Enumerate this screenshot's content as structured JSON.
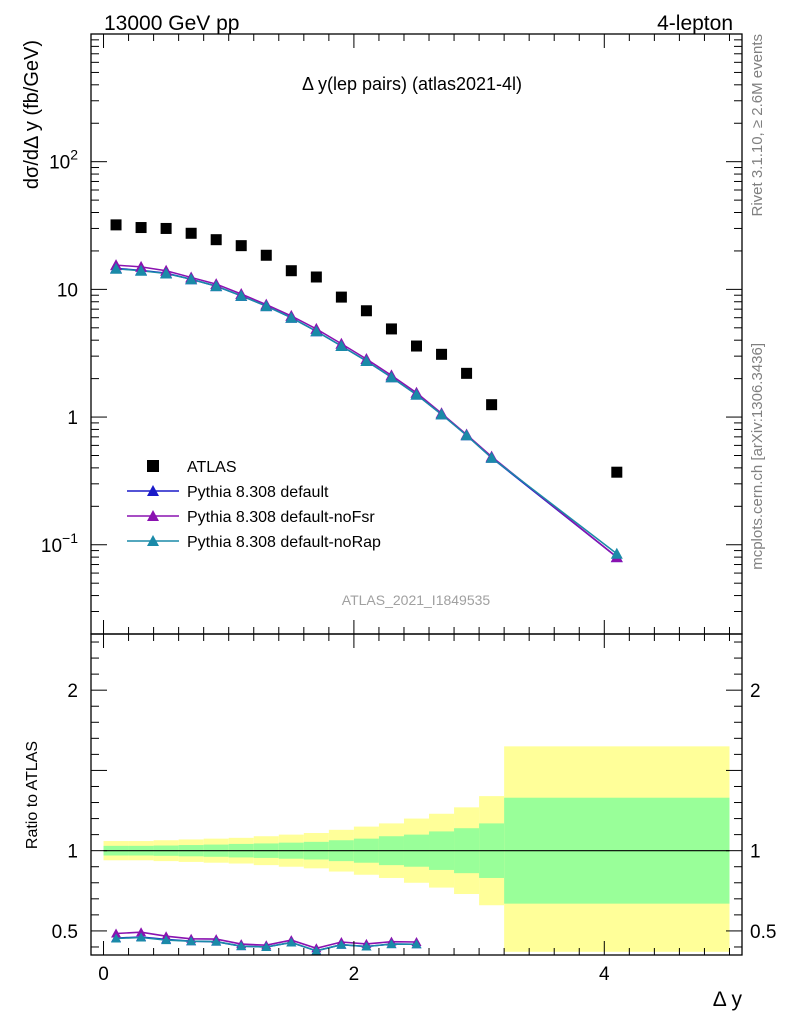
{
  "header": {
    "left": "13000 GeV pp",
    "right": "4-lepton"
  },
  "side_labels": {
    "rivet": "Rivet 3.1.10, ≥ 2.6M events",
    "mcplots": "mcplots.cern.ch [arXiv:1306.3436]"
  },
  "watermark": "ATLAS_2021_I1849535",
  "chart_data": [
    {
      "panel": "main",
      "type": "scatter",
      "title": "Δ y(lep pairs) (atlas2021-4l)",
      "ylabel": "dσ/dΔ y (fb/GeV)",
      "xlabel": "",
      "yscale": "log",
      "xlim": [
        -0.1,
        5.1
      ],
      "ylim": [
        0.02,
        1000
      ],
      "y_ticks": [
        {
          "value": 0.1,
          "base": "10",
          "exp": "−1"
        },
        {
          "value": 1,
          "base": "1",
          "exp": ""
        },
        {
          "value": 10,
          "base": "10",
          "exp": ""
        },
        {
          "value": 100,
          "base": "10",
          "exp": "2"
        }
      ],
      "legend_position": "bottom-left",
      "x": [
        0.1,
        0.3,
        0.5,
        0.7,
        0.9,
        1.1,
        1.3,
        1.5,
        1.7,
        1.9,
        2.1,
        2.3,
        2.5,
        2.7,
        2.9,
        3.1,
        4.1
      ],
      "series": [
        {
          "name": "ATLAS",
          "color": "#000000",
          "marker": "square",
          "values": [
            32.0,
            30.5,
            30.0,
            27.5,
            24.5,
            22.0,
            18.5,
            14.0,
            12.5,
            8.7,
            6.8,
            4.9,
            3.6,
            3.1,
            2.2,
            1.25,
            0.37
          ]
        },
        {
          "name": "Pythia 8.308 default",
          "color": "#1a1ac8",
          "marker": "triangle",
          "values": [
            14.6,
            14.1,
            13.4,
            12.0,
            10.6,
            8.9,
            7.4,
            6.0,
            4.7,
            3.6,
            2.75,
            2.05,
            1.5,
            1.05,
            0.72,
            0.48,
            0.08
          ]
        },
        {
          "name": "Pythia 8.308 default-noFsr",
          "color": "#8a12b0",
          "marker": "triangle",
          "values": [
            15.5,
            15.0,
            14.0,
            12.4,
            11.0,
            9.2,
            7.6,
            6.2,
            4.9,
            3.75,
            2.85,
            2.12,
            1.55,
            1.07,
            0.73,
            0.49,
            0.08
          ]
        },
        {
          "name": "Pythia 8.308 default-noRap",
          "color": "#1a8aa8",
          "marker": "triangle",
          "values": [
            14.5,
            14.0,
            13.3,
            12.0,
            10.6,
            8.9,
            7.4,
            6.0,
            4.7,
            3.6,
            2.75,
            2.05,
            1.5,
            1.05,
            0.72,
            0.48,
            0.085
          ]
        }
      ]
    },
    {
      "panel": "ratio",
      "type": "line",
      "ylabel": "Ratio to ATLAS",
      "xlabel": "Δ y",
      "ylim": [
        0.35,
        2.35
      ],
      "y_ticks": [
        0.5,
        1,
        2
      ],
      "x_ticks": [
        0,
        2,
        4
      ],
      "bands": {
        "edges": [
          0.0,
          0.2,
          0.4,
          0.6,
          0.8,
          1.0,
          1.2,
          1.4,
          1.6,
          1.8,
          2.0,
          2.2,
          2.4,
          2.6,
          2.8,
          3.0,
          3.2,
          5.0
        ],
        "yellow": [
          [
            0.94,
            1.06
          ],
          [
            0.94,
            1.06
          ],
          [
            0.935,
            1.065
          ],
          [
            0.93,
            1.07
          ],
          [
            0.925,
            1.075
          ],
          [
            0.92,
            1.08
          ],
          [
            0.91,
            1.09
          ],
          [
            0.9,
            1.1
          ],
          [
            0.89,
            1.11
          ],
          [
            0.87,
            1.13
          ],
          [
            0.85,
            1.15
          ],
          [
            0.83,
            1.17
          ],
          [
            0.8,
            1.2
          ],
          [
            0.77,
            1.23
          ],
          [
            0.73,
            1.27
          ],
          [
            0.66,
            1.34
          ],
          [
            0.37,
            1.65
          ],
          [
            0.58,
            1.42
          ]
        ],
        "green": [
          [
            0.97,
            1.03
          ],
          [
            0.97,
            1.03
          ],
          [
            0.968,
            1.032
          ],
          [
            0.965,
            1.035
          ],
          [
            0.962,
            1.038
          ],
          [
            0.958,
            1.042
          ],
          [
            0.955,
            1.045
          ],
          [
            0.95,
            1.05
          ],
          [
            0.945,
            1.055
          ],
          [
            0.935,
            1.065
          ],
          [
            0.925,
            1.075
          ],
          [
            0.91,
            1.09
          ],
          [
            0.9,
            1.1
          ],
          [
            0.88,
            1.12
          ],
          [
            0.86,
            1.14
          ],
          [
            0.83,
            1.17
          ],
          [
            0.67,
            1.33
          ],
          [
            0.75,
            1.25
          ]
        ],
        "yellow_color": "#ffff99",
        "green_color": "#99ff99"
      },
      "x": [
        0.1,
        0.3,
        0.5,
        0.7,
        0.9,
        1.1,
        1.3,
        1.5,
        1.7,
        1.9,
        2.1,
        2.3,
        2.5
      ],
      "series": [
        {
          "name": "Pythia 8.308 default",
          "color": "#1a1ac8",
          "values": [
            0.455,
            0.462,
            0.447,
            0.436,
            0.433,
            0.405,
            0.4,
            0.428,
            0.376,
            0.414,
            0.403,
            0.418,
            0.417
          ]
        },
        {
          "name": "Pythia 8.308 default-noFsr",
          "color": "#8a12b0",
          "values": [
            0.484,
            0.492,
            0.467,
            0.451,
            0.449,
            0.418,
            0.411,
            0.443,
            0.392,
            0.431,
            0.419,
            0.433,
            0.431
          ]
        },
        {
          "name": "Pythia 8.308 default-noRap",
          "color": "#1a8aa8",
          "values": [
            0.453,
            0.459,
            0.443,
            0.436,
            0.433,
            0.405,
            0.4,
            0.428,
            0.376,
            0.414,
            0.403,
            0.418,
            0.417
          ]
        }
      ]
    }
  ]
}
